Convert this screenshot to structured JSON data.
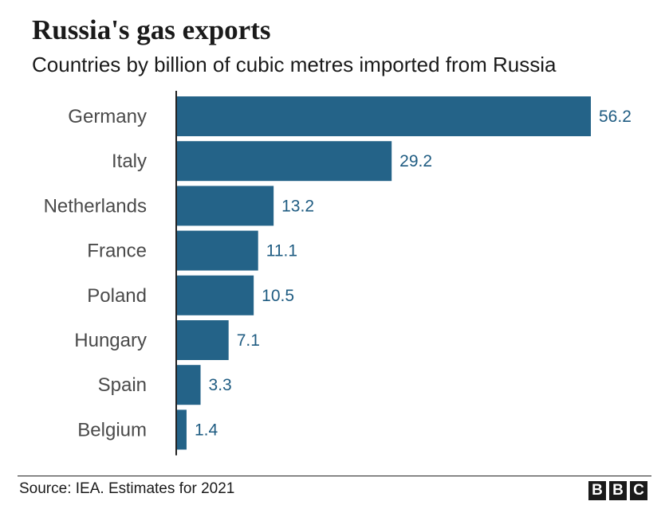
{
  "header": {
    "title": "Russia's gas exports",
    "subtitle": "Countries by billion of cubic metres imported from Russia"
  },
  "footer": {
    "source": "Source: IEA. Estimates for 2021",
    "logo_letters": [
      "B",
      "B",
      "C"
    ]
  },
  "colors": {
    "bar": "#246388",
    "value_label": "#1f5c82",
    "category_label": "#4a4a4a",
    "axis": "#222222"
  },
  "chart_data": {
    "type": "bar",
    "orientation": "horizontal",
    "title": "Russia's gas exports",
    "subtitle": "Countries by billion of cubic metres imported from Russia",
    "categories": [
      "Germany",
      "Italy",
      "Netherlands",
      "France",
      "Poland",
      "Hungary",
      "Spain",
      "Belgium"
    ],
    "values": [
      56.2,
      29.2,
      13.2,
      11.1,
      10.5,
      7.1,
      3.3,
      1.4
    ],
    "value_labels": [
      "56.2",
      "29.2",
      "13.2",
      "11.1",
      "10.5",
      "7.1",
      "3.3",
      "1.4"
    ],
    "xlim": [
      0,
      56.2
    ],
    "grid": false,
    "legend": "none"
  }
}
